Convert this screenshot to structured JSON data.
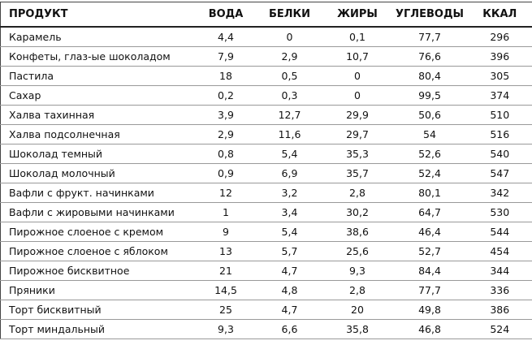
{
  "table": {
    "header": [
      "ПРОДУКТ",
      "ВОДА",
      "БЕЛКИ",
      "ЖИРЫ",
      "УГЛЕВОДЫ",
      "ККАЛ"
    ],
    "rows": [
      [
        "Карамель",
        "4,4",
        "0",
        "0,1",
        "77,7",
        "296"
      ],
      [
        "Конфеты, глаз-ые шоколадом",
        "7,9",
        "2,9",
        "10,7",
        "76,6",
        "396"
      ],
      [
        "Пастила",
        "18",
        "0,5",
        "0",
        "80,4",
        "305"
      ],
      [
        "Сахар",
        "0,2",
        "0,3",
        "0",
        "99,5",
        "374"
      ],
      [
        "Халва тахинная",
        "3,9",
        "12,7",
        "29,9",
        "50,6",
        "510"
      ],
      [
        "Халва подсолнечная",
        "2,9",
        "11,6",
        "29,7",
        "54",
        "516"
      ],
      [
        "Шоколад темный",
        "0,8",
        "5,4",
        "35,3",
        "52,6",
        "540"
      ],
      [
        "Шоколад молочный",
        "0,9",
        "6,9",
        "35,7",
        "52,4",
        "547"
      ],
      [
        "Вафли с фрукт. начинками",
        "12",
        "3,2",
        "2,8",
        "80,1",
        "342"
      ],
      [
        "Вафли с жировыми начинками",
        "1",
        "3,4",
        "30,2",
        "64,7",
        "530"
      ],
      [
        "Пирожное слоеное с кремом",
        "9",
        "5,4",
        "38,6",
        "46,4",
        "544"
      ],
      [
        "Пирожное слоеное с яблоком",
        "13",
        "5,7",
        "25,6",
        "52,7",
        "454"
      ],
      [
        "Пирожное бисквитное",
        "21",
        "4,7",
        "9,3",
        "84,4",
        "344"
      ],
      [
        "Пряники",
        "14,5",
        "4,8",
        "2,8",
        "77,7",
        "336"
      ],
      [
        "Торт бисквитный",
        "25",
        "4,7",
        "20",
        "49,8",
        "386"
      ],
      [
        "Торт миндальный",
        "9,3",
        "6,6",
        "35,8",
        "46,8",
        "524"
      ]
    ]
  }
}
